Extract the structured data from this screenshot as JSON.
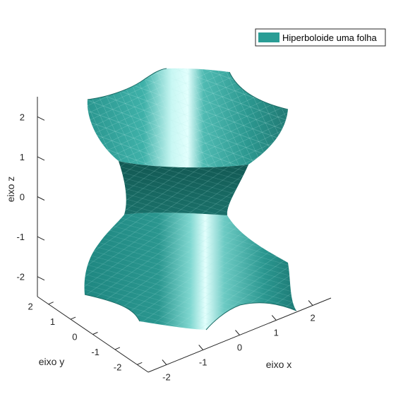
{
  "chart_data": {
    "type": "surface",
    "surface": "hyperboloid of one sheet: x^2 + y^2 - z^2 = 1",
    "title": "",
    "xlabel": "eixo x",
    "ylabel": "eixo y",
    "zlabel": "eixo z",
    "xlim": [
      -2.5,
      2.5
    ],
    "ylim": [
      -2.5,
      2.5
    ],
    "zlim": [
      -2.5,
      2.5
    ],
    "x_ticks": [
      "-2",
      "-1",
      "0",
      "1",
      "2"
    ],
    "y_ticks": [
      "-2",
      "-1",
      "0",
      "1",
      "2"
    ],
    "z_ticks": [
      "-2",
      "-1",
      "0",
      "1",
      "2"
    ],
    "legend": {
      "entries": [
        "Hiperboloide uma folha"
      ],
      "placement": "top-right"
    },
    "colors": {
      "surface": "#2a9d95",
      "highlight": "#dffdfb",
      "mesh": "#9fd9d3"
    }
  }
}
